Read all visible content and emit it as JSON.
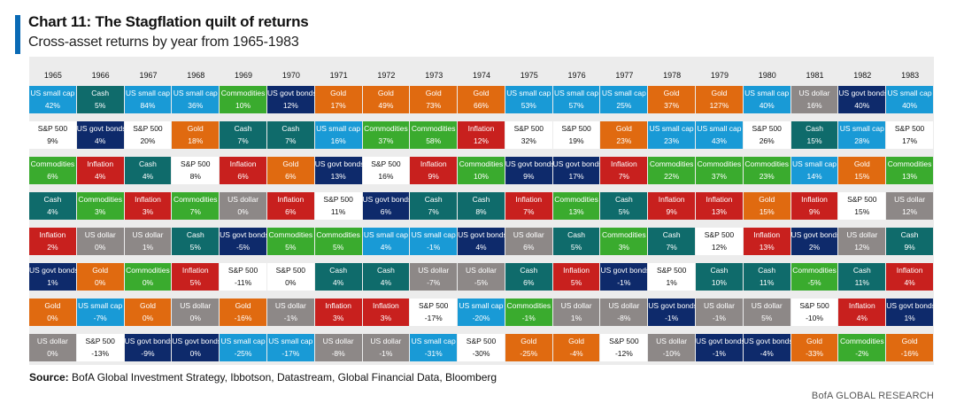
{
  "header": {
    "title": "Chart 11: The Stagflation quilt of returns",
    "subtitle": "Cross-asset returns by year from 1965-1983"
  },
  "footer": {
    "source_label": "Source:",
    "source_text": "BofA Global Investment Strategy, Ibbotson, Datastream, Global Financial Data, Bloomberg",
    "brand": "BofA GLOBAL RESEARCH"
  },
  "colors": {
    "US small cap": "#199ad6",
    "Cash": "#0f6b6b",
    "Commodities": "#3aab2e",
    "US govt bonds": "#0e2a6b",
    "Gold": "#e06a10",
    "US dollar": "#8d8887",
    "Inflation": "#c8201e",
    "S&P 500": "#ffffff"
  },
  "chart_data": {
    "type": "table",
    "title": "Chart 11: The Stagflation quilt of returns",
    "subtitle": "Cross-asset returns by year from 1965-1983",
    "years": [
      "1965",
      "1966",
      "1967",
      "1968",
      "1969",
      "1970",
      "1971",
      "1972",
      "1973",
      "1974",
      "1975",
      "1976",
      "1977",
      "1978",
      "1979",
      "1980",
      "1981",
      "1982",
      "1983"
    ],
    "columns": [
      [
        [
          "US small cap",
          "42%"
        ],
        [
          "S&P 500",
          "9%"
        ],
        [
          "Commodities",
          "6%"
        ],
        [
          "Cash",
          "4%"
        ],
        [
          "Inflation",
          "2%"
        ],
        [
          "US govt bonds",
          "1%"
        ],
        [
          "Gold",
          "0%"
        ],
        [
          "US dollar",
          "0%"
        ]
      ],
      [
        [
          "Cash",
          "5%"
        ],
        [
          "US govt bonds",
          "4%"
        ],
        [
          "Inflation",
          "4%"
        ],
        [
          "Commodities",
          "3%"
        ],
        [
          "US dollar",
          "0%"
        ],
        [
          "Gold",
          "0%"
        ],
        [
          "US small cap",
          "-7%"
        ],
        [
          "S&P 500",
          "-13%"
        ]
      ],
      [
        [
          "US small cap",
          "84%"
        ],
        [
          "S&P 500",
          "20%"
        ],
        [
          "Cash",
          "4%"
        ],
        [
          "Inflation",
          "3%"
        ],
        [
          "US dollar",
          "1%"
        ],
        [
          "Commodities",
          "0%"
        ],
        [
          "Gold",
          "0%"
        ],
        [
          "US govt bonds",
          "-9%"
        ]
      ],
      [
        [
          "US small cap",
          "36%"
        ],
        [
          "Gold",
          "18%"
        ],
        [
          "S&P 500",
          "8%"
        ],
        [
          "Commodities",
          "7%"
        ],
        [
          "Cash",
          "5%"
        ],
        [
          "Inflation",
          "5%"
        ],
        [
          "US dollar",
          "0%"
        ],
        [
          "US govt bonds",
          "0%"
        ]
      ],
      [
        [
          "Commodities",
          "10%"
        ],
        [
          "Cash",
          "7%"
        ],
        [
          "Inflation",
          "6%"
        ],
        [
          "US dollar",
          "0%"
        ],
        [
          "US govt bonds",
          "-5%"
        ],
        [
          "S&P 500",
          "-11%"
        ],
        [
          "Gold",
          "-16%"
        ],
        [
          "US small cap",
          "-25%"
        ]
      ],
      [
        [
          "US govt bonds",
          "12%"
        ],
        [
          "Cash",
          "7%"
        ],
        [
          "Gold",
          "6%"
        ],
        [
          "Inflation",
          "6%"
        ],
        [
          "Commodities",
          "5%"
        ],
        [
          "S&P 500",
          "0%"
        ],
        [
          "US dollar",
          "-1%"
        ],
        [
          "US small cap",
          "-17%"
        ]
      ],
      [
        [
          "Gold",
          "17%"
        ],
        [
          "US small cap",
          "16%"
        ],
        [
          "US govt bonds",
          "13%"
        ],
        [
          "S&P 500",
          "11%"
        ],
        [
          "Commodities",
          "5%"
        ],
        [
          "Cash",
          "4%"
        ],
        [
          "Inflation",
          "3%"
        ],
        [
          "US dollar",
          "-8%"
        ]
      ],
      [
        [
          "Gold",
          "49%"
        ],
        [
          "Commodities",
          "37%"
        ],
        [
          "S&P 500",
          "16%"
        ],
        [
          "US govt bonds",
          "6%"
        ],
        [
          "US small cap",
          "4%"
        ],
        [
          "Cash",
          "4%"
        ],
        [
          "Inflation",
          "3%"
        ],
        [
          "US dollar",
          "-1%"
        ]
      ],
      [
        [
          "Gold",
          "73%"
        ],
        [
          "Commodities",
          "58%"
        ],
        [
          "Inflation",
          "9%"
        ],
        [
          "Cash",
          "7%"
        ],
        [
          "US small cap",
          "-1%"
        ],
        [
          "US dollar",
          "-7%"
        ],
        [
          "S&P 500",
          "-17%"
        ],
        [
          "US small cap",
          "-31%"
        ]
      ],
      [
        [
          "Gold",
          "66%"
        ],
        [
          "Inflation",
          "12%"
        ],
        [
          "Commodities",
          "10%"
        ],
        [
          "Cash",
          "8%"
        ],
        [
          "US govt bonds",
          "4%"
        ],
        [
          "US dollar",
          "-5%"
        ],
        [
          "US small cap",
          "-20%"
        ],
        [
          "S&P 500",
          "-30%"
        ]
      ],
      [
        [
          "US small cap",
          "53%"
        ],
        [
          "S&P 500",
          "32%"
        ],
        [
          "US govt bonds",
          "9%"
        ],
        [
          "Inflation",
          "7%"
        ],
        [
          "US dollar",
          "6%"
        ],
        [
          "Cash",
          "6%"
        ],
        [
          "Commodities",
          "-1%"
        ],
        [
          "Gold",
          "-25%"
        ]
      ],
      [
        [
          "US small cap",
          "57%"
        ],
        [
          "S&P 500",
          "19%"
        ],
        [
          "US govt bonds",
          "17%"
        ],
        [
          "Commodities",
          "13%"
        ],
        [
          "Cash",
          "5%"
        ],
        [
          "Inflation",
          "5%"
        ],
        [
          "US dollar",
          "1%"
        ],
        [
          "Gold",
          "-4%"
        ]
      ],
      [
        [
          "US small cap",
          "25%"
        ],
        [
          "Gold",
          "23%"
        ],
        [
          "Inflation",
          "7%"
        ],
        [
          "Cash",
          "5%"
        ],
        [
          "Commodities",
          "3%"
        ],
        [
          "US govt bonds",
          "-1%"
        ],
        [
          "US dollar",
          "-8%"
        ],
        [
          "S&P 500",
          "-12%"
        ]
      ],
      [
        [
          "Gold",
          "37%"
        ],
        [
          "US small cap",
          "23%"
        ],
        [
          "Commodities",
          "22%"
        ],
        [
          "Inflation",
          "9%"
        ],
        [
          "Cash",
          "7%"
        ],
        [
          "S&P 500",
          "1%"
        ],
        [
          "US govt bonds",
          "-1%"
        ],
        [
          "US dollar",
          "-10%"
        ]
      ],
      [
        [
          "Gold",
          "127%"
        ],
        [
          "US small cap",
          "43%"
        ],
        [
          "Commodities",
          "37%"
        ],
        [
          "Inflation",
          "13%"
        ],
        [
          "S&P 500",
          "12%"
        ],
        [
          "Cash",
          "10%"
        ],
        [
          "US dollar",
          "-1%"
        ],
        [
          "US govt bonds",
          "-1%"
        ]
      ],
      [
        [
          "US small cap",
          "40%"
        ],
        [
          "S&P 500",
          "26%"
        ],
        [
          "Commodities",
          "23%"
        ],
        [
          "Gold",
          "15%"
        ],
        [
          "Inflation",
          "13%"
        ],
        [
          "Cash",
          "11%"
        ],
        [
          "US dollar",
          "5%"
        ],
        [
          "US govt bonds",
          "-4%"
        ]
      ],
      [
        [
          "US dollar",
          "16%"
        ],
        [
          "Cash",
          "15%"
        ],
        [
          "US small cap",
          "14%"
        ],
        [
          "Inflation",
          "9%"
        ],
        [
          "US govt bonds",
          "2%"
        ],
        [
          "Commodities",
          "-5%"
        ],
        [
          "S&P 500",
          "-10%"
        ],
        [
          "Gold",
          "-33%"
        ]
      ],
      [
        [
          "US govt bonds",
          "40%"
        ],
        [
          "US small cap",
          "28%"
        ],
        [
          "Gold",
          "15%"
        ],
        [
          "S&P 500",
          "15%"
        ],
        [
          "US dollar",
          "12%"
        ],
        [
          "Cash",
          "11%"
        ],
        [
          "Inflation",
          "4%"
        ],
        [
          "Commodities",
          "-2%"
        ]
      ],
      [
        [
          "US small cap",
          "40%"
        ],
        [
          "S&P 500",
          "17%"
        ],
        [
          "Commodities",
          "13%"
        ],
        [
          "US dollar",
          "12%"
        ],
        [
          "Cash",
          "9%"
        ],
        [
          "Inflation",
          "4%"
        ],
        [
          "US govt bonds",
          "1%"
        ],
        [
          "Gold",
          "-16%"
        ]
      ]
    ]
  }
}
